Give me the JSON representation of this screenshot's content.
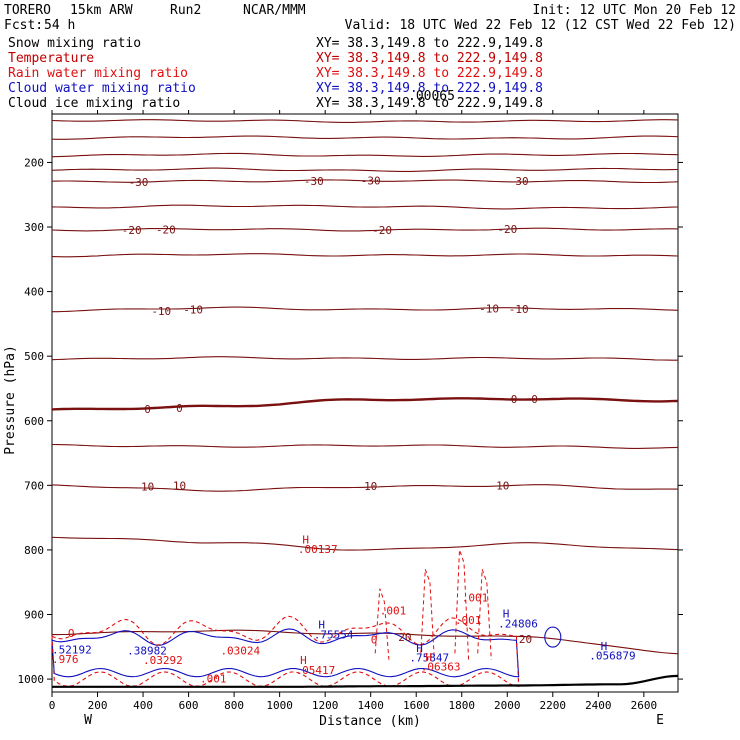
{
  "header": {
    "model": "TORERO",
    "resolution": "15km ARW",
    "run": "Run2",
    "org": "NCAR/MMM",
    "init": "Init: 12 UTC Mon 20 Feb 12",
    "fcst_label": "Fcst:",
    "fcst_value": "54 h",
    "valid": "Valid: 18 UTC Wed 22 Feb 12 (12 CST Wed 22 Feb 12)"
  },
  "colors": {
    "snow": "#000000",
    "temperature": "#7a1010",
    "temperature_label": "#d01010",
    "rain": "#e01010",
    "cloud_water": "#1010c0",
    "cloud_ice": "#000000"
  },
  "legend": [
    {
      "label": "Snow mixing ratio",
      "xy": "XY=  38.3,149.8 to 222.9,149.8"
    },
    {
      "label": "Temperature",
      "xy": "XY=  38.3,149.8 to 222.9,149.8"
    },
    {
      "label": "Rain water mixing ratio",
      "xy": "XY=  38.3,149.8 to 222.9,149.8"
    },
    {
      "label": "Cloud water mixing ratio",
      "xy": "XY=  38.3,149.8 to 222.9,149.8"
    },
    {
      "label": "Cloud ice mixing ratio",
      "xy": "XY=  38.3,149.8 to 222.9,149.8"
    }
  ],
  "chart_data": {
    "type": "contour-cross-section",
    "xlabel": "Distance (km)",
    "ylabel": "Pressure (hPa)",
    "xlim": [
      0,
      2750
    ],
    "ylim": [
      1020,
      125
    ],
    "x_ticks": [
      0,
      200,
      400,
      600,
      800,
      1000,
      1200,
      1400,
      1600,
      1800,
      2000,
      2200,
      2400,
      2600
    ],
    "y_ticks": [
      200,
      300,
      400,
      500,
      600,
      700,
      800,
      900,
      1000
    ],
    "x_end_labels": {
      "left": "W",
      "right": "E"
    },
    "isotherm_levels": [
      -50,
      -45,
      -40,
      -35,
      -30,
      -25,
      -20,
      -15,
      -10,
      -5,
      0,
      5,
      10,
      15,
      20
    ],
    "isotherm_pressures": [
      [
        135,
        135,
        137,
        136,
        135
      ],
      [
        163,
        160,
        162,
        163,
        160
      ],
      [
        190,
        187,
        190,
        188,
        187
      ],
      [
        212,
        210,
        213,
        211,
        210
      ],
      [
        230,
        229,
        228,
        229,
        230
      ],
      [
        270,
        267,
        268,
        271,
        270
      ],
      [
        305,
        303,
        305,
        303,
        304
      ],
      [
        345,
        342,
        344,
        343,
        345
      ],
      [
        430,
        425,
        428,
        426,
        428
      ],
      [
        505,
        502,
        504,
        503,
        505
      ],
      [
        583,
        578,
        567,
        566,
        569
      ],
      [
        638,
        640,
        638,
        640,
        642
      ],
      [
        700,
        708,
        702,
        700,
        707
      ],
      [
        780,
        788,
        800,
        790,
        800
      ],
      [
        930,
        925,
        930,
        935,
        960
      ]
    ],
    "isotherm_nodes_km": [
      0,
      700,
      1400,
      2100,
      2750
    ],
    "isotherm_labels": [
      {
        "text": "-30",
        "x": 380,
        "p": 230
      },
      {
        "text": "-30",
        "x": 1150,
        "p": 229
      },
      {
        "text": "-30",
        "x": 1400,
        "p": 228
      },
      {
        "text": "-30",
        "x": 2050,
        "p": 229
      },
      {
        "text": "-20",
        "x": 350,
        "p": 305
      },
      {
        "text": "-20",
        "x": 500,
        "p": 304
      },
      {
        "text": "-20",
        "x": 1450,
        "p": 305
      },
      {
        "text": "-20",
        "x": 2000,
        "p": 303
      },
      {
        "text": "-10",
        "x": 480,
        "p": 430
      },
      {
        "text": "-10",
        "x": 620,
        "p": 428
      },
      {
        "text": "-10",
        "x": 1920,
        "p": 426
      },
      {
        "text": "-10",
        "x": 2050,
        "p": 427
      },
      {
        "text": "0",
        "x": 420,
        "p": 582
      },
      {
        "text": "0",
        "x": 560,
        "p": 580
      },
      {
        "text": "0",
        "x": 2030,
        "p": 566
      },
      {
        "text": "0",
        "x": 2120,
        "p": 566
      },
      {
        "text": "10",
        "x": 420,
        "p": 702
      },
      {
        "text": "10",
        "x": 560,
        "p": 700
      },
      {
        "text": "10",
        "x": 1400,
        "p": 701
      },
      {
        "text": "10",
        "x": 1980,
        "p": 700
      },
      {
        "text": "20",
        "x": 1550,
        "p": 935
      },
      {
        "text": "20",
        "x": 2080,
        "p": 938
      }
    ],
    "terrain_pressure": [
      1012,
      1012,
      1012,
      1011,
      1010,
      1008,
      995
    ],
    "terrain_nodes_km": [
      0,
      500,
      1000,
      1500,
      2000,
      2500,
      2750
    ],
    "annotations": [
      {
        "text": "H",
        "x": 1100,
        "p": 790,
        "color": "temperature_label"
      },
      {
        "text": ".00137",
        "x": 1080,
        "p": 805,
        "color": "temperature_label"
      },
      {
        "text": ".001",
        "x": 1800,
        "p": 880,
        "color": "rain"
      },
      {
        "text": ".001",
        "x": 1440,
        "p": 900,
        "color": "rain"
      },
      {
        "text": ".001",
        "x": 1770,
        "p": 915,
        "color": "rain"
      },
      {
        "text": "H",
        "x": 1980,
        "p": 905,
        "color": "cloud_water"
      },
      {
        "text": ".24806",
        "x": 1960,
        "p": 920,
        "color": "cloud_water"
      },
      {
        "text": "H",
        "x": 1170,
        "p": 922,
        "color": "cloud_water"
      },
      {
        "text": ".75554",
        "x": 1150,
        "p": 937,
        "color": "cloud_water"
      },
      {
        "text": ".52192",
        "x": 0,
        "p": 960,
        "color": "cloud_water"
      },
      {
        "text": ".976",
        "x": 0,
        "p": 975,
        "color": "rain"
      },
      {
        "text": ".38982",
        "x": 330,
        "p": 962,
        "color": "cloud_water"
      },
      {
        "text": ".03292",
        "x": 400,
        "p": 977,
        "color": "rain"
      },
      {
        "text": ".03024",
        "x": 740,
        "p": 962,
        "color": "rain"
      },
      {
        "text": "H",
        "x": 1600,
        "p": 958,
        "color": "cloud_water"
      },
      {
        "text": ".75847",
        "x": 1570,
        "p": 973,
        "color": "cloud_water"
      },
      {
        "text": "H",
        "x": 1640,
        "p": 972,
        "color": "rain"
      },
      {
        "text": ".06363",
        "x": 1620,
        "p": 987,
        "color": "rain"
      },
      {
        "text": "H",
        "x": 1090,
        "p": 977,
        "color": "rain"
      },
      {
        "text": ".05417",
        "x": 1070,
        "p": 992,
        "color": "rain"
      },
      {
        "text": "H",
        "x": 2410,
        "p": 955,
        "color": "cloud_water"
      },
      {
        "text": ".056879",
        "x": 2360,
        "p": 970,
        "color": "cloud_water"
      },
      {
        "text": "O",
        "x": 70,
        "p": 935,
        "color": "rain"
      },
      {
        "text": "0",
        "x": 1400,
        "p": 945,
        "color": "rain"
      },
      {
        "text": ".001",
        "x": 650,
        "p": 1005,
        "color": "rain"
      }
    ],
    "top_overlap_text": ".00065"
  }
}
